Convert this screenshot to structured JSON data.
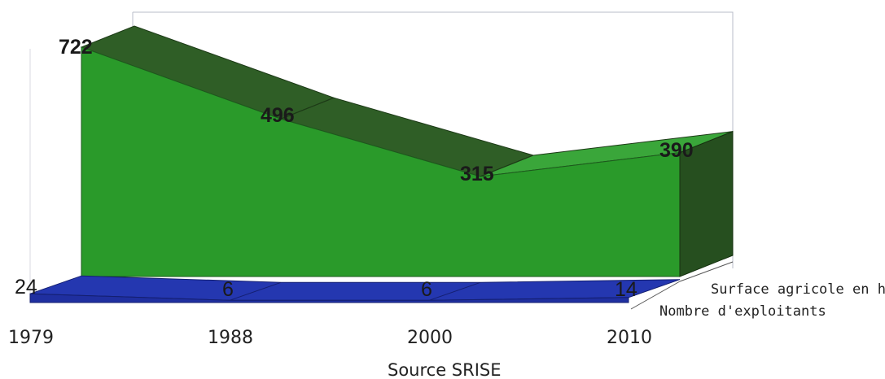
{
  "chart_data": {
    "type": "area",
    "categories": [
      "1979",
      "1988",
      "2000",
      "2010"
    ],
    "series": [
      {
        "name": "Surface agricole en ha",
        "values": [
          722,
          496,
          315,
          390
        ]
      },
      {
        "name": "Nombre d'exploitants",
        "values": [
          24,
          6,
          6,
          14
        ]
      }
    ],
    "value_labels": {
      "surface": [
        "722",
        "496",
        "315",
        "390"
      ],
      "exploitants": [
        "24",
        "6",
        "6",
        "14"
      ]
    },
    "caption": "Source SRISE",
    "colors": {
      "surface_front": "#2a9a2a",
      "surface_top": "#2f5e26",
      "surface_top_light": "#3aa63a",
      "surface_side": "#264f1f",
      "exploitants_front": "#1f2fa0",
      "exploitants_top": "#2437b0",
      "wall_line": "#b8bcc8"
    },
    "legend_position": "right",
    "grid": false,
    "ylim": [
      0,
      800
    ]
  }
}
